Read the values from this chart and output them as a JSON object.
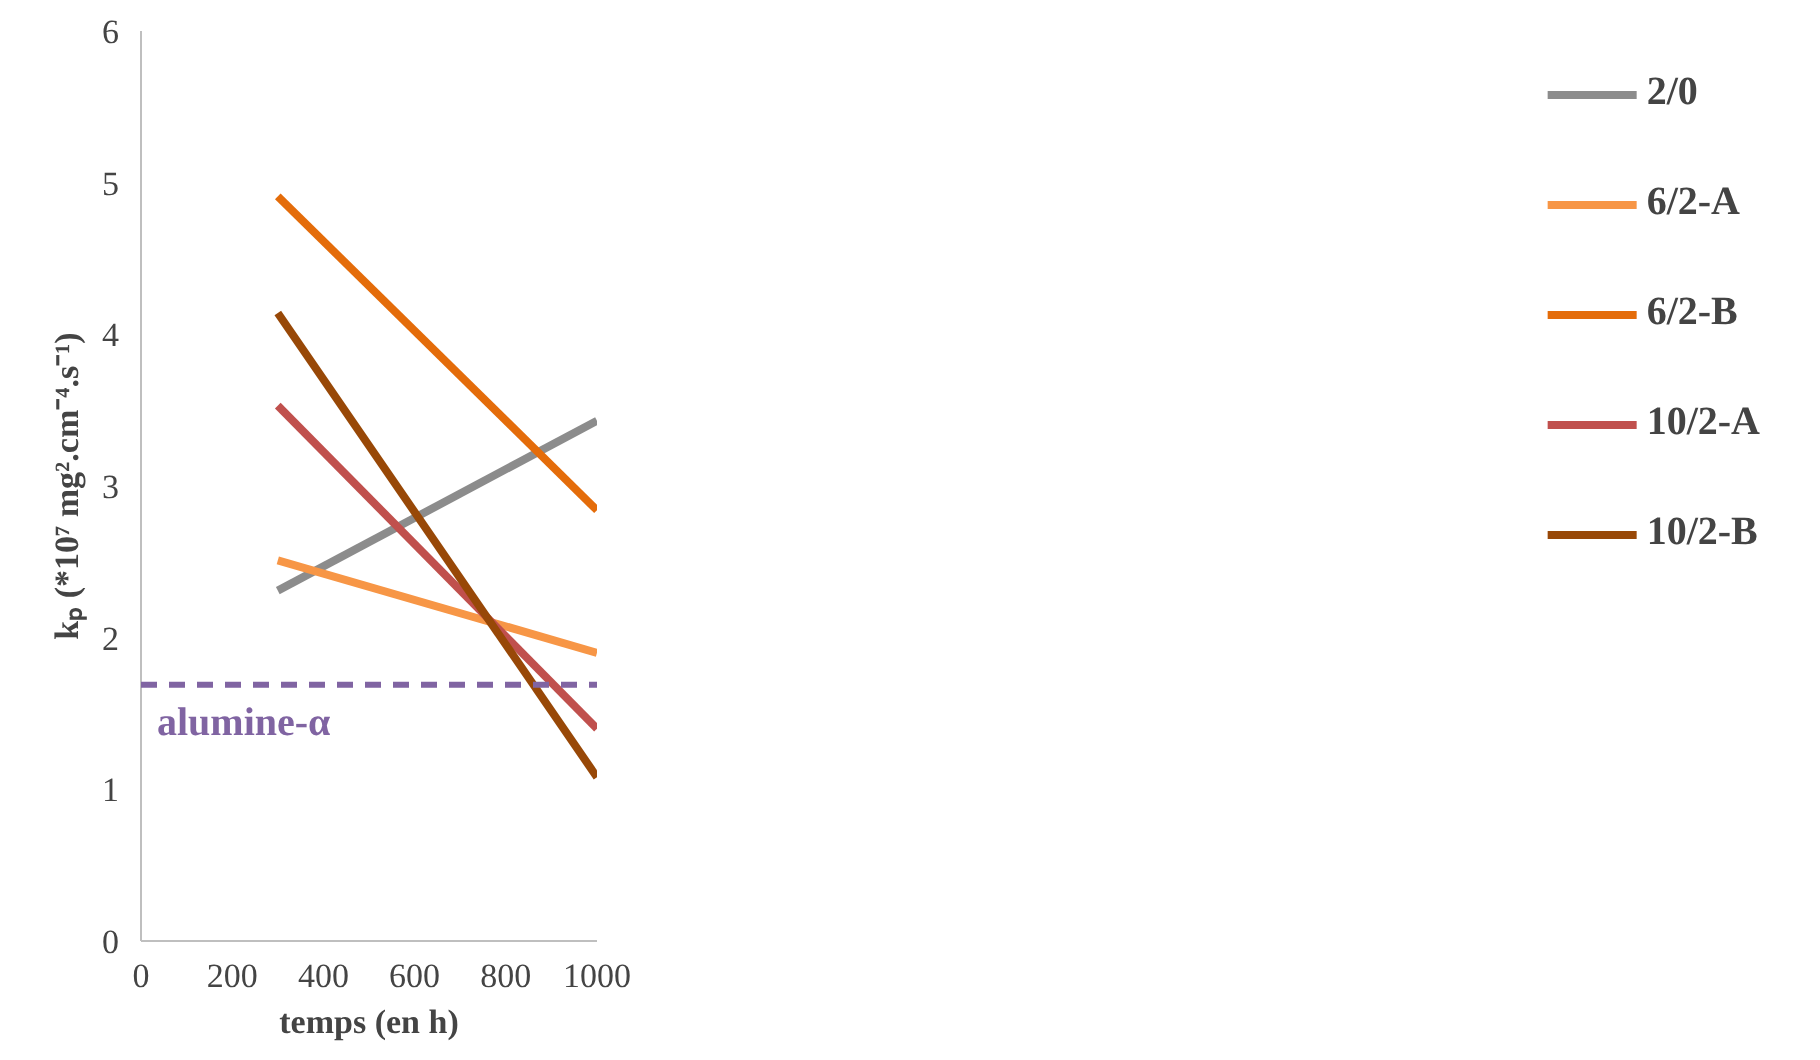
{
  "chart_data": {
    "type": "line",
    "xlabel": "temps (en h)",
    "ylabel": "kₚ (*10⁷ mg².cm⁻⁴.s⁻¹)",
    "x": [
      300,
      1000
    ],
    "series": [
      {
        "name": "2/0",
        "color": "#8c8c8c",
        "values": [
          2.31,
          3.43
        ]
      },
      {
        "name": "6/2-A",
        "color": "#f79646",
        "values": [
          2.51,
          1.9
        ]
      },
      {
        "name": "6/2-B",
        "color": "#e46c0a",
        "values": [
          4.91,
          2.84
        ]
      },
      {
        "name": "10/2-A",
        "color": "#c0504d",
        "values": [
          3.53,
          1.4
        ]
      },
      {
        "name": "10/2-B",
        "color": "#984807",
        "values": [
          4.14,
          1.08
        ]
      }
    ],
    "ref_lines": [
      {
        "axis": "y",
        "value": 1.69,
        "label": "alumine-α",
        "color": "#8064a2",
        "line_style": "dashed"
      }
    ],
    "xlim": [
      0,
      1000
    ],
    "ylim": [
      0,
      6
    ],
    "xticks": [
      0,
      200,
      400,
      600,
      800,
      1000
    ],
    "yticks": [
      0,
      1,
      2,
      3,
      4,
      5,
      6
    ],
    "grid": false,
    "legend": "right",
    "marker": "none",
    "line_style": "solid"
  }
}
